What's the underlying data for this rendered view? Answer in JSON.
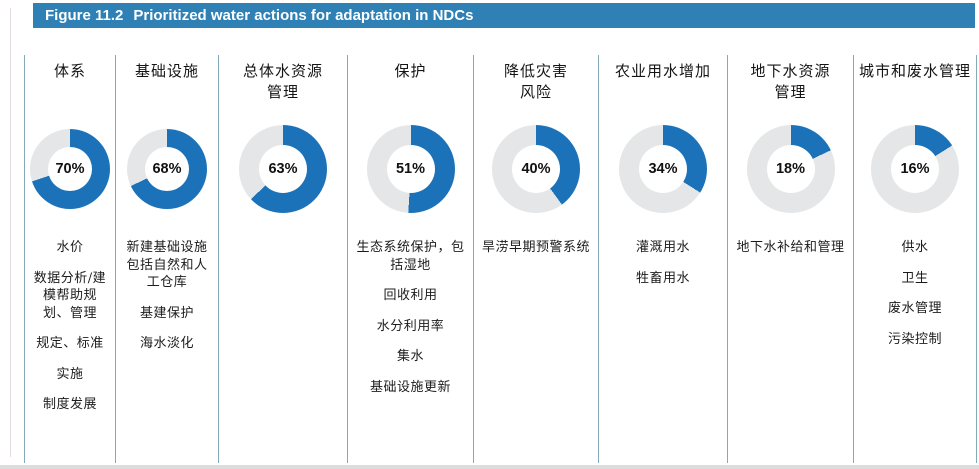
{
  "figure_header": {
    "label": "Figure 11.2",
    "title": "Prioritized water actions for adaptation in NDCs"
  },
  "colors": {
    "header_bg": "#2E80B5",
    "donut_fill": "#1C72B8",
    "donut_track": "#E5E6E7",
    "divider": "#84A9BA"
  },
  "columns": [
    {
      "header": "体系",
      "percent": 70,
      "percent_label": "70%",
      "items": [
        "水价",
        "数据分析/建模帮助规划、管理",
        "规定、标准",
        "实施",
        "制度发展"
      ]
    },
    {
      "header": "基础设施",
      "percent": 68,
      "percent_label": "68%",
      "items": [
        "新建基础设施包括自然和人工仓库",
        "基建保护",
        "海水淡化"
      ]
    },
    {
      "header": "总体水资源\n管理",
      "percent": 63,
      "percent_label": "63%",
      "items": []
    },
    {
      "header": "保护",
      "percent": 51,
      "percent_label": "51%",
      "items": [
        "生态系统保护，包括湿地",
        "回收利用",
        "水分利用率",
        "集水",
        "基础设施更新"
      ]
    },
    {
      "header": "降低灾害\n风险",
      "percent": 40,
      "percent_label": "40%",
      "items": [
        "旱涝早期预警系统"
      ]
    },
    {
      "header": "农业用水增加",
      "percent": 34,
      "percent_label": "34%",
      "items": [
        "灌溉用水",
        "牲畜用水"
      ]
    },
    {
      "header": "地下水资源\n管理",
      "percent": 18,
      "percent_label": "18%",
      "items": [
        "地下水补给和管理"
      ]
    },
    {
      "header": "城市和废水管理",
      "percent": 16,
      "percent_label": "16%",
      "items": [
        "供水",
        "卫生",
        "废水管理",
        "污染控制"
      ]
    }
  ],
  "chart_data": {
    "type": "pie",
    "subtype": "donut-small-multiples",
    "title": "Figure 11.2 Prioritized water actions for adaptation in NDCs",
    "categories": [
      "体系",
      "基础设施",
      "总体水资源管理",
      "保护",
      "降低灾害风险",
      "农业用水增加",
      "地下水资源管理",
      "城市和废水管理"
    ],
    "values": [
      70,
      68,
      63,
      51,
      40,
      34,
      18,
      16
    ],
    "unit": "%",
    "fill_color": "#1C72B8",
    "track_color": "#E5E6E7",
    "start_angle_deg": 0,
    "direction": "clockwise",
    "legend": "none",
    "annotations": {
      "体系": [
        "水价",
        "数据分析/建模帮助规划、管理",
        "规定、标准",
        "实施",
        "制度发展"
      ],
      "基础设施": [
        "新建基础设施包括自然和人工仓库",
        "基建保护",
        "海水淡化"
      ],
      "总体水资源管理": [],
      "保护": [
        "生态系统保护，包括湿地",
        "回收利用",
        "水分利用率",
        "集水",
        "基础设施更新"
      ],
      "降低灾害风险": [
        "旱涝早期预警系统"
      ],
      "农业用水增加": [
        "灌溉用水",
        "牲畜用水"
      ],
      "地下水资源管理": [
        "地下水补给和管理"
      ],
      "城市和废水管理": [
        "供水",
        "卫生",
        "废水管理",
        "污染控制"
      ]
    }
  }
}
